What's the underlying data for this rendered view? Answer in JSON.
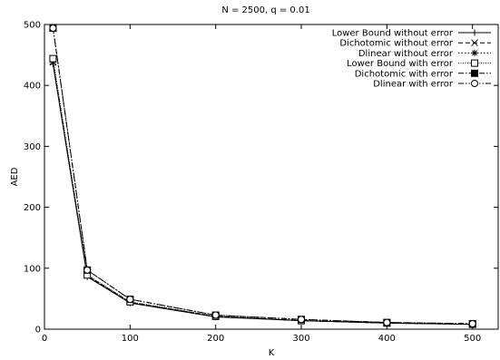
{
  "chart_data": {
    "type": "line",
    "title": "N = 2500, q = 0.01",
    "xlabel": "K",
    "ylabel": "AED",
    "xlim": [
      0,
      530
    ],
    "ylim": [
      0,
      500
    ],
    "xticks": [
      0,
      100,
      200,
      300,
      400,
      500
    ],
    "yticks": [
      0,
      100,
      200,
      300,
      400,
      500
    ],
    "grid": false,
    "legend_position": "top-right",
    "x": [
      10,
      50,
      100,
      200,
      300,
      400,
      500
    ],
    "series": [
      {
        "name": "Lower Bound without error",
        "marker": "plus",
        "dash": "solid",
        "values": [
          435,
          86,
          43,
          20,
          14,
          10,
          8
        ]
      },
      {
        "name": "Dichotomic without error",
        "marker": "cross",
        "dash": "dashed",
        "values": [
          438,
          88,
          44,
          21,
          14,
          10,
          8
        ]
      },
      {
        "name": "Dlinear without error",
        "marker": "star",
        "dash": "dotted",
        "values": [
          438,
          88,
          44,
          21,
          14,
          10,
          8
        ]
      },
      {
        "name": "Lower Bound with error",
        "marker": "square-open",
        "dash": "dotted-fine",
        "values": [
          444,
          89,
          45,
          21,
          14,
          10,
          8
        ]
      },
      {
        "name": "Dichotomic with error",
        "marker": "square-filled",
        "dash": "dashdot",
        "values": [
          494,
          97,
          49,
          23,
          16,
          11,
          9
        ]
      },
      {
        "name": "Dlinear with error",
        "marker": "circle-open",
        "dash": "dashdotdot",
        "values": [
          494,
          97,
          49,
          23,
          16,
          11,
          9
        ]
      }
    ]
  }
}
